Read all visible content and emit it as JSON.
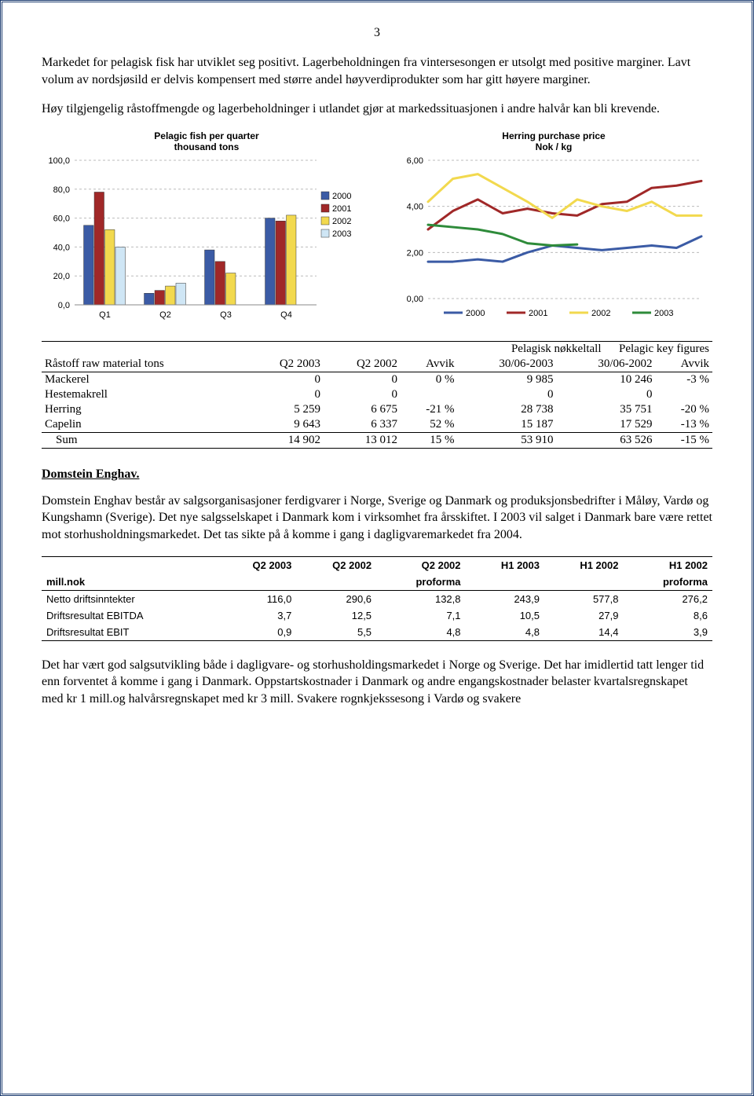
{
  "page_number": "3",
  "paragraphs": {
    "p1": "Markedet for pelagisk fisk har utviklet seg positivt. Lagerbeholdningen fra vintersesongen er utsolgt med positive marginer. Lavt volum av nordsjøsild er delvis kompensert med større andel høyverdiprodukter som har gitt høyere marginer.",
    "p2": "Høy tilgjengelig råstoffmengde og lagerbeholdninger i utlandet gjør at markedssituasjonen i andre halvår kan bli krevende.",
    "p3": "Domstein Enghav består av salgsorganisasjoner ferdigvarer i Norge, Sverige og Danmark og produksjonsbedrifter i Måløy, Vardø og Kungshamn (Sverige). Det nye salgsselskapet i Danmark kom i virksomhet fra årsskiftet. I 2003 vil salget i Danmark bare være rettet mot storhusholdningsmarkedet. Det tas sikte på å komme i gang i dagligvaremarkedet fra 2004.",
    "p4": "Det har vært god salgsutvikling både i dagligvare- og storhusholdingsmarkedet i Norge og Sverige. Det har imidlertid tatt lenger tid enn forventet å komme i gang i Danmark. Oppstartskostnader i Danmark og andre engangskostnader belaster kvartalsregnskapet med kr 1 mill.og halvårsregnskapet med kr 3 mill.  Svakere rognkjekssesong i Vardø og svakere"
  },
  "bar_chart": {
    "title": "Pelagic fish per quarter\nthousand tons",
    "categories": [
      "Q1",
      "Q2",
      "Q3",
      "Q4"
    ],
    "series": [
      {
        "name": "2000",
        "color": "#3b5ba5",
        "values": [
          55,
          8,
          38,
          60
        ]
      },
      {
        "name": "2001",
        "color": "#a02828",
        "values": [
          78,
          10,
          30,
          58
        ]
      },
      {
        "name": "2002",
        "color": "#f2d94e",
        "values": [
          52,
          13,
          22,
          62
        ]
      },
      {
        "name": "2003",
        "color": "#cfe6f5",
        "values": [
          40,
          15,
          0,
          0
        ]
      }
    ],
    "y_ticks": [
      "0,0",
      "20,0",
      "40,0",
      "60,0",
      "80,0",
      "100,0"
    ],
    "y_min": 0,
    "y_max": 100,
    "y_step": 20,
    "grid_color": "#bbbbbb",
    "background": "#ffffff",
    "bar_group_width": 0.7
  },
  "line_chart": {
    "title": "Herring purchase price\nNok / kg",
    "y_ticks": [
      "0,00",
      "2,00",
      "4,00",
      "6,00"
    ],
    "y_min": 0,
    "y_max": 6,
    "y_step": 2,
    "grid_color": "#bbbbbb",
    "series": [
      {
        "name": "2000",
        "color": "#3b5ba5",
        "values": [
          1.6,
          1.6,
          1.7,
          1.6,
          2.0,
          2.3,
          2.2,
          2.1,
          2.2,
          2.3,
          2.2,
          2.7
        ]
      },
      {
        "name": "2001",
        "color": "#a02828",
        "values": [
          3.0,
          3.8,
          4.3,
          3.7,
          3.9,
          3.7,
          3.6,
          4.1,
          4.2,
          4.8,
          4.9,
          5.1
        ]
      },
      {
        "name": "2002",
        "color": "#f2d94e",
        "values": [
          4.2,
          5.2,
          5.4,
          4.8,
          4.2,
          3.5,
          4.3,
          4.0,
          3.8,
          4.2,
          3.6,
          3.6
        ]
      },
      {
        "name": "2003",
        "color": "#2e8b3a",
        "values": [
          3.2,
          3.1,
          3.0,
          2.8,
          2.4,
          2.3,
          2.35
        ]
      }
    ]
  },
  "pelagic_table": {
    "header_left_1": "Pelagisk nøkkeltall",
    "header_left_2": "Pelagic key figures",
    "header_sub": "Råstoff  raw material tons",
    "columns": [
      "Q2 2003",
      "Q2 2002",
      "Avvik",
      "30/06-2003",
      "30/06-2002",
      "Avvik"
    ],
    "rows": [
      {
        "label": "Mackerel",
        "cells": [
          "0",
          "0",
          "0 %",
          "9 985",
          "10 246",
          "-3 %"
        ]
      },
      {
        "label": "Hestemakrell",
        "cells": [
          "0",
          "0",
          "",
          "0",
          "0",
          ""
        ]
      },
      {
        "label": "Herring",
        "cells": [
          "5 259",
          "6 675",
          "-21 %",
          "28 738",
          "35 751",
          "-20 %"
        ]
      },
      {
        "label": "Capelin",
        "cells": [
          "9 643",
          "6 337",
          "52 %",
          "15 187",
          "17 529",
          "-13 %"
        ]
      }
    ],
    "sum": {
      "label": "Sum",
      "cells": [
        "14 902",
        "13 012",
        "15 %",
        "53 910",
        "63 526",
        "-15 %"
      ]
    }
  },
  "section_heading": "Domstein Enghav.",
  "fin_table": {
    "row1_label": "",
    "row2_label": "mill.nok",
    "columns": [
      "Q2 2003",
      "Q2 2002",
      "Q2 2002",
      "H1 2003",
      "H1 2002",
      "H1 2002"
    ],
    "subcolumns": [
      "",
      "",
      "proforma",
      "",
      "",
      "proforma"
    ],
    "rows": [
      {
        "label": "Netto driftsinntekter",
        "cells": [
          "116,0",
          "290,6",
          "132,8",
          "243,9",
          "577,8",
          "276,2"
        ]
      },
      {
        "label": "Driftsresultat EBITDA",
        "cells": [
          "3,7",
          "12,5",
          "7,1",
          "10,5",
          "27,9",
          "8,6"
        ]
      },
      {
        "label": "Driftsresultat EBIT",
        "cells": [
          "0,9",
          "5,5",
          "4,8",
          "4,8",
          "14,4",
          "3,9"
        ]
      }
    ]
  }
}
